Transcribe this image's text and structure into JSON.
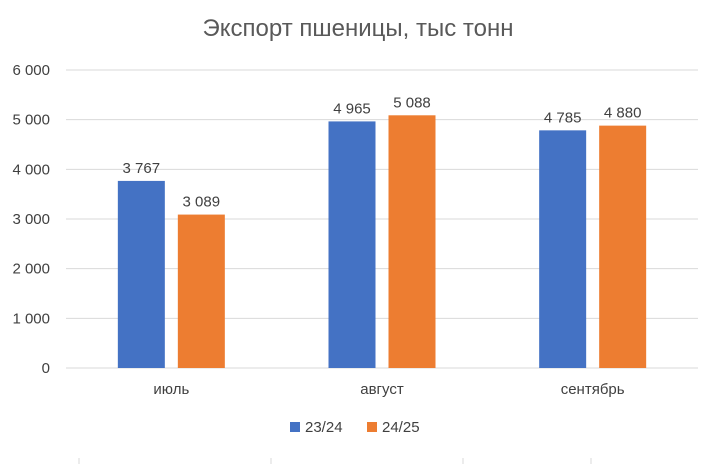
{
  "chart_data": {
    "type": "bar",
    "title": "Экспорт пшеницы, тыс тонн",
    "xlabel": "",
    "ylabel": "",
    "categories": [
      "июль",
      "август",
      "сентябрь"
    ],
    "series": [
      {
        "name": "23/24",
        "color": "#4472C4",
        "values": [
          3767,
          4965,
          4785
        ],
        "labels": [
          "3 767",
          "4 965",
          "4 785"
        ]
      },
      {
        "name": "24/25",
        "color": "#ED7D31",
        "values": [
          3089,
          5088,
          4880
        ],
        "labels": [
          "3 089",
          "5 088",
          "4 880"
        ]
      }
    ],
    "ylim": [
      0,
      6000
    ],
    "yticks": [
      0,
      1000,
      2000,
      3000,
      4000,
      5000,
      6000
    ],
    "ytick_labels": [
      "0",
      "1 000",
      "2 000",
      "3 000",
      "4 000",
      "5 000",
      "6 000"
    ],
    "grid": true,
    "legend": "bottom",
    "gridline_color": "#D9D9D9"
  }
}
